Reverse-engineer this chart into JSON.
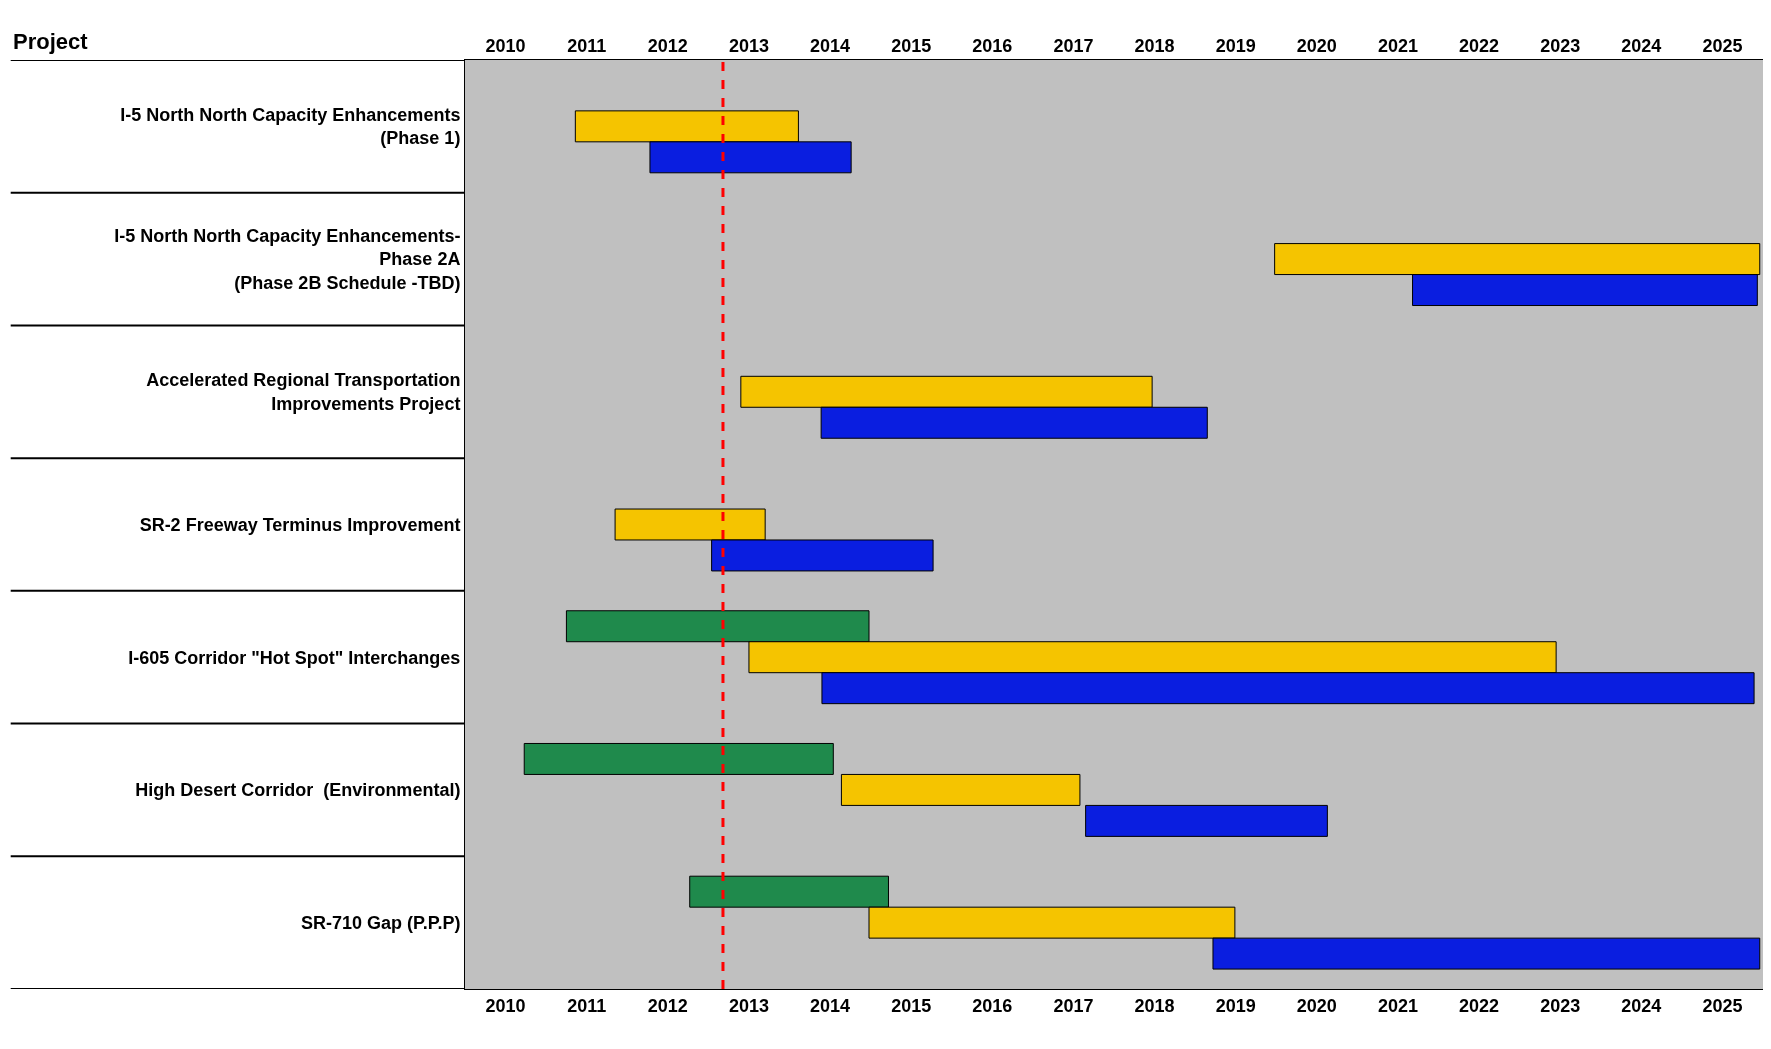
{
  "chart_data": {
    "type": "bar",
    "orientation": "horizontal",
    "ylabel": "Project",
    "categories": [
      "I-5 North North Capacity Enhancements\n(Phase 1)",
      "I-5 North North Capacity Enhancements-\nPhase 2A\n(Phase 2B Schedule -TBD)",
      "Accelerated Regional Transportation\nImprovements Project",
      "SR-2 Freeway Terminus Improvement",
      "I-605 Corridor \"Hot Spot\" Interchanges",
      "High Desert Corridor  (Environmental)",
      "SR-710 Gap (P.P.P)"
    ],
    "series": [
      {
        "color": "#1f8a4c",
        "base": [
          null,
          null,
          null,
          null,
          2011.25,
          2010.73,
          2012.77
        ],
        "values": [
          null,
          null,
          null,
          null,
          3.73,
          3.81,
          2.45
        ]
      },
      {
        "color": "#f5c400",
        "base": [
          2011.36,
          2019.98,
          2013.4,
          2011.85,
          2013.5,
          2014.64,
          2014.98
        ],
        "values": [
          2.75,
          5.98,
          5.07,
          1.85,
          9.95,
          2.94,
          4.51
        ]
      },
      {
        "color": "#0a1ee0",
        "base": [
          2012.28,
          2021.68,
          2014.39,
          2013.04,
          2014.4,
          2017.65,
          2019.22
        ],
        "values": [
          2.48,
          4.25,
          4.76,
          2.73,
          11.49,
          2.98,
          6.74
        ]
      }
    ],
    "xlim": [
      2010,
      2026
    ],
    "xticks": [
      {
        "value": 2010.5,
        "label": "2010"
      },
      {
        "value": 2011.5,
        "label": "2011"
      },
      {
        "value": 2012.5,
        "label": "2012"
      },
      {
        "value": 2013.5,
        "label": "2013"
      },
      {
        "value": 2014.5,
        "label": "2014"
      },
      {
        "value": 2015.5,
        "label": "2015"
      },
      {
        "value": 2016.5,
        "label": "2016"
      },
      {
        "value": 2017.5,
        "label": "2017"
      },
      {
        "value": 2018.5,
        "label": "2018"
      },
      {
        "value": 2019.5,
        "label": "2019"
      },
      {
        "value": 2020.5,
        "label": "2020"
      },
      {
        "value": 2021.5,
        "label": "2021"
      },
      {
        "value": 2022.5,
        "label": "2022"
      },
      {
        "value": 2023.5,
        "label": "2023"
      },
      {
        "value": 2024.5,
        "label": "2024"
      },
      {
        "value": 2025.5,
        "label": "2025"
      }
    ],
    "x2lim": [
      2010,
      2026
    ],
    "x2ticks": [
      {
        "value": 2010.5,
        "label": "2010"
      },
      {
        "value": 2011.5,
        "label": "2011"
      },
      {
        "value": 2012.5,
        "label": "2012"
      },
      {
        "value": 2013.5,
        "label": "2013"
      },
      {
        "value": 2014.5,
        "label": "2014"
      },
      {
        "value": 2015.5,
        "label": "2015"
      },
      {
        "value": 2016.5,
        "label": "2016"
      },
      {
        "value": 2017.5,
        "label": "2017"
      },
      {
        "value": 2018.5,
        "label": "2018"
      },
      {
        "value": 2019.5,
        "label": "2019"
      },
      {
        "value": 2020.5,
        "label": "2020"
      },
      {
        "value": 2021.5,
        "label": "2021"
      },
      {
        "value": 2022.5,
        "label": "2022"
      },
      {
        "value": 2023.5,
        "label": "2023"
      },
      {
        "value": 2024.5,
        "label": "2024"
      },
      {
        "value": 2025.5,
        "label": "2025"
      }
    ],
    "ref_lines": [
      {
        "axis": "x",
        "value": 2013.18,
        "color": "#ff0000",
        "line_style": "dashed"
      }
    ],
    "grid": false
  }
}
